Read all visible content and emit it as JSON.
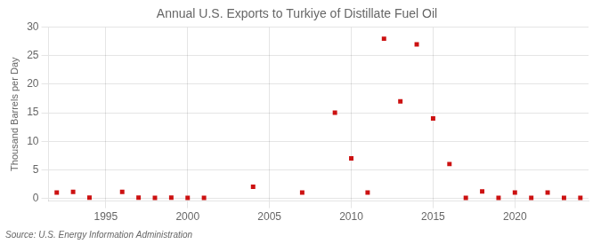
{
  "chart_data": {
    "type": "scatter",
    "title": "Annual U.S. Exports to Turkiye of Distillate Fuel Oil",
    "y_label": "Thousand Barrels per Day",
    "annotations": [
      "Source: U.S. Energy Information Administration"
    ],
    "x": [
      1992,
      1993,
      1994,
      1996,
      1997,
      1998,
      1999,
      2000,
      2001,
      2004,
      2007,
      2009,
      2010,
      2011,
      2012,
      2013,
      2014,
      2015,
      2016,
      2017,
      2018,
      2019,
      2020,
      2021,
      2022,
      2023,
      2024
    ],
    "values": [
      1.0,
      1.1,
      0.1,
      1.1,
      0.1,
      0.05,
      0.1,
      0.05,
      0.05,
      2.0,
      1.0,
      15.0,
      7.0,
      1.0,
      28.0,
      17.0,
      27.0,
      14.0,
      6.0,
      0.05,
      1.2,
      0.05,
      1.0,
      0.05,
      1.0,
      0.05,
      0.05
    ],
    "color": "#cc1111",
    "marker": "square",
    "xlim": [
      1991.5,
      2024.5
    ],
    "xticks": [
      1995,
      2000,
      2005,
      2010,
      2015,
      2020
    ],
    "ylim": [
      -0.5,
      30
    ],
    "yticks": [
      0,
      5,
      10,
      15,
      20,
      25,
      30
    ],
    "grid": true
  }
}
